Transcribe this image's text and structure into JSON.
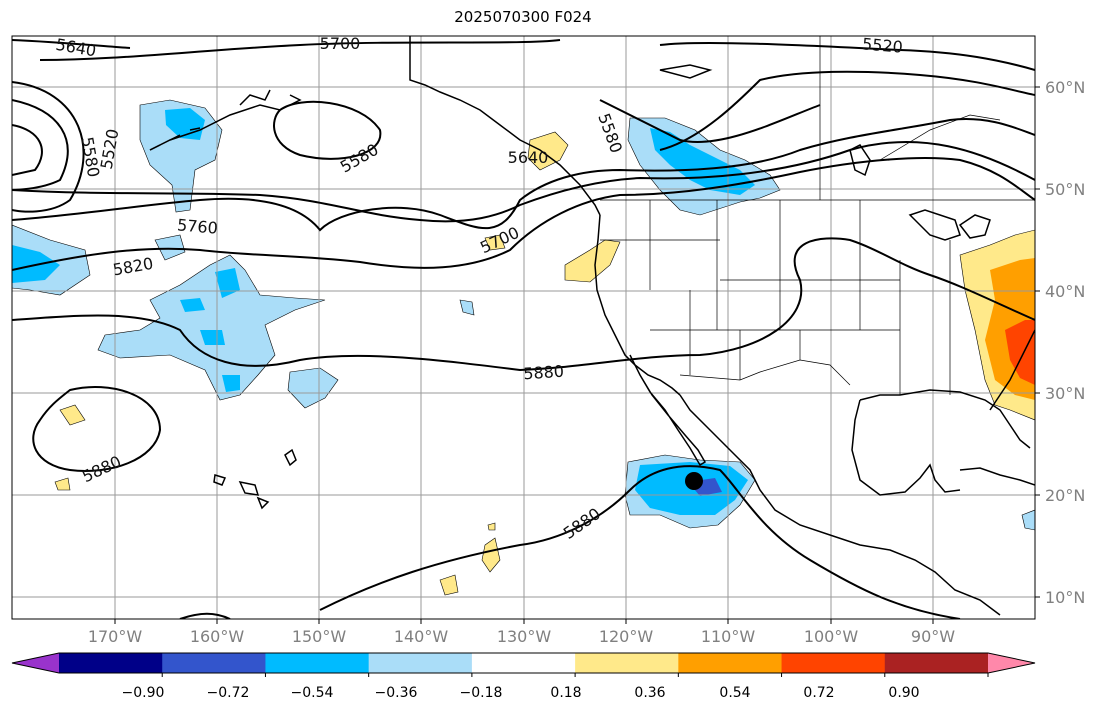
{
  "title": "2025070300 F024",
  "lat_labels": [
    "60°N",
    "50°N",
    "40°N",
    "30°N",
    "20°N",
    "10°N"
  ],
  "lon_labels": [
    "170°W",
    "160°W",
    "150°W",
    "140°W",
    "130°W",
    "120°W",
    "110°W",
    "100°W",
    "90°W"
  ],
  "contour_labels": [
    "5640",
    "5700",
    "5520",
    "5580",
    "5520",
    "5580",
    "5580",
    "5640",
    "5760",
    "5700",
    "5820",
    "5880",
    "5880",
    "5880"
  ],
  "colorbar": {
    "tick_labels": [
      "−0.90",
      "−0.72",
      "−0.54",
      "−0.36",
      "−0.18",
      "0.18",
      "0.36",
      "0.54",
      "0.72",
      "0.90"
    ],
    "colors": [
      "#9933cc",
      "#000088",
      "#3355cc",
      "#00bbff",
      "#aaddf8",
      "#ffffff",
      "#ffe98a",
      "#ff9f00",
      "#ff4400",
      "#aa2222",
      "#ff88aa"
    ]
  },
  "marker": {
    "name": "storm-center-marker",
    "lat": 21.5,
    "lon": -113.5
  }
}
